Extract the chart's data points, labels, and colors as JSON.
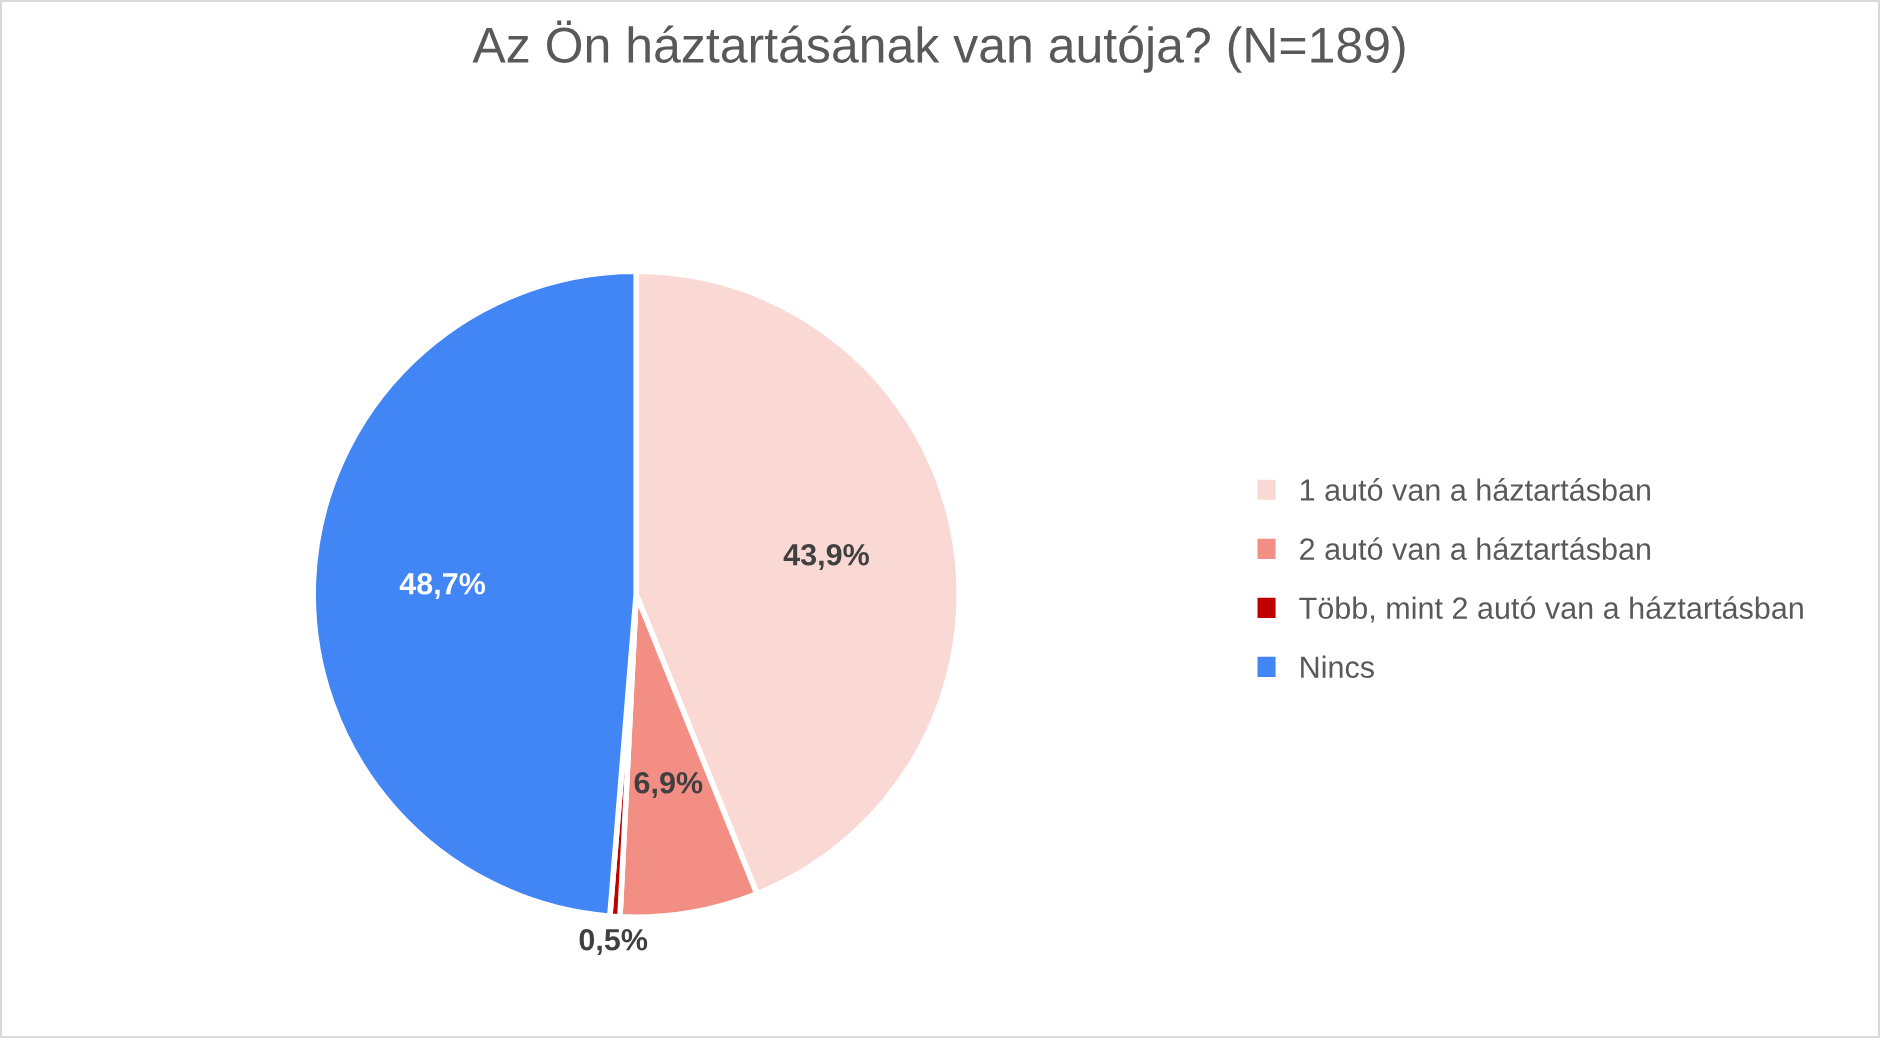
{
  "chart_data": {
    "type": "pie",
    "title": "Az Ön háztartásának van autója? (N=189)",
    "categories": [
      "1 autó van a háztartásban",
      "2 autó van a háztartásban",
      "Több, mint 2 autó van a háztartásban",
      "Nincs"
    ],
    "values": [
      43.9,
      6.9,
      0.5,
      48.7
    ],
    "colors": [
      "#fad9d5",
      "#f28e84",
      "#c00000",
      "#4285f4"
    ],
    "value_labels": [
      "43,9%",
      "6,9%",
      "0,5%",
      "48,7%"
    ],
    "legend": "right"
  }
}
